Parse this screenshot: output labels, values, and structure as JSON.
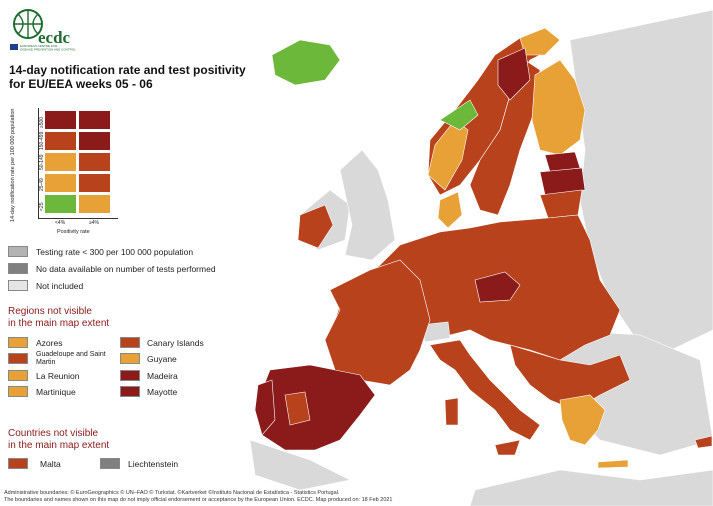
{
  "logo": {
    "text": "ecdc",
    "agency": "EUROPEAN CENTRE FOR DISEASE PREVENTION AND CONTROL"
  },
  "title": {
    "line1": "14-day notification rate and test positivity",
    "line2": "for EU/EEA weeks 05 - 06"
  },
  "colors": {
    "dark": "#8b1a1a",
    "red": "#b8421c",
    "orange": "#e8a136",
    "green": "#6bb83a",
    "sea": "#ffffff",
    "noncountry": "#d9d9d9",
    "grey_testing": "#b3b3b3",
    "grey_nodata": "#808080",
    "notincluded": "#e5e5e5"
  },
  "grid": {
    "ylabel": "14-day notification rate per 100 000 population",
    "xlabel": "Positivity rate",
    "rows": [
      "≥500",
      "150-499",
      "50-149",
      "25-49",
      "<25"
    ],
    "cols": [
      "<4%",
      "≥4%"
    ]
  },
  "legend": {
    "testing": "Testing rate < 300 per 100 000 population",
    "nodata": "No data available on number of tests performed",
    "notincluded": "Not included"
  },
  "regions": {
    "heading1": "Regions not visible",
    "heading2": "in the main map extent",
    "items": [
      "Azores",
      "Guadeloupe and Saint Martin",
      "La Reunion",
      "Martinique",
      "Canary Islands",
      "Guyane",
      "Madeira",
      "Mayotte"
    ]
  },
  "countries": {
    "heading1": "Countries not visible",
    "heading2": "in the main map extent",
    "items": [
      "Malta",
      "Liechtenstein"
    ]
  },
  "footer": {
    "line1": "Administrative boundaries: © EuroGeographics © UN–FAO © Turkstat. ©Kartverket ©Instituto Nacional de Estatística - Statistics Portugal.",
    "line2": "The boundaries and names shown on this map do not imply official endorsement or acceptance by the European Union. ECDC. Map produced on: 18 Feb 2021"
  }
}
